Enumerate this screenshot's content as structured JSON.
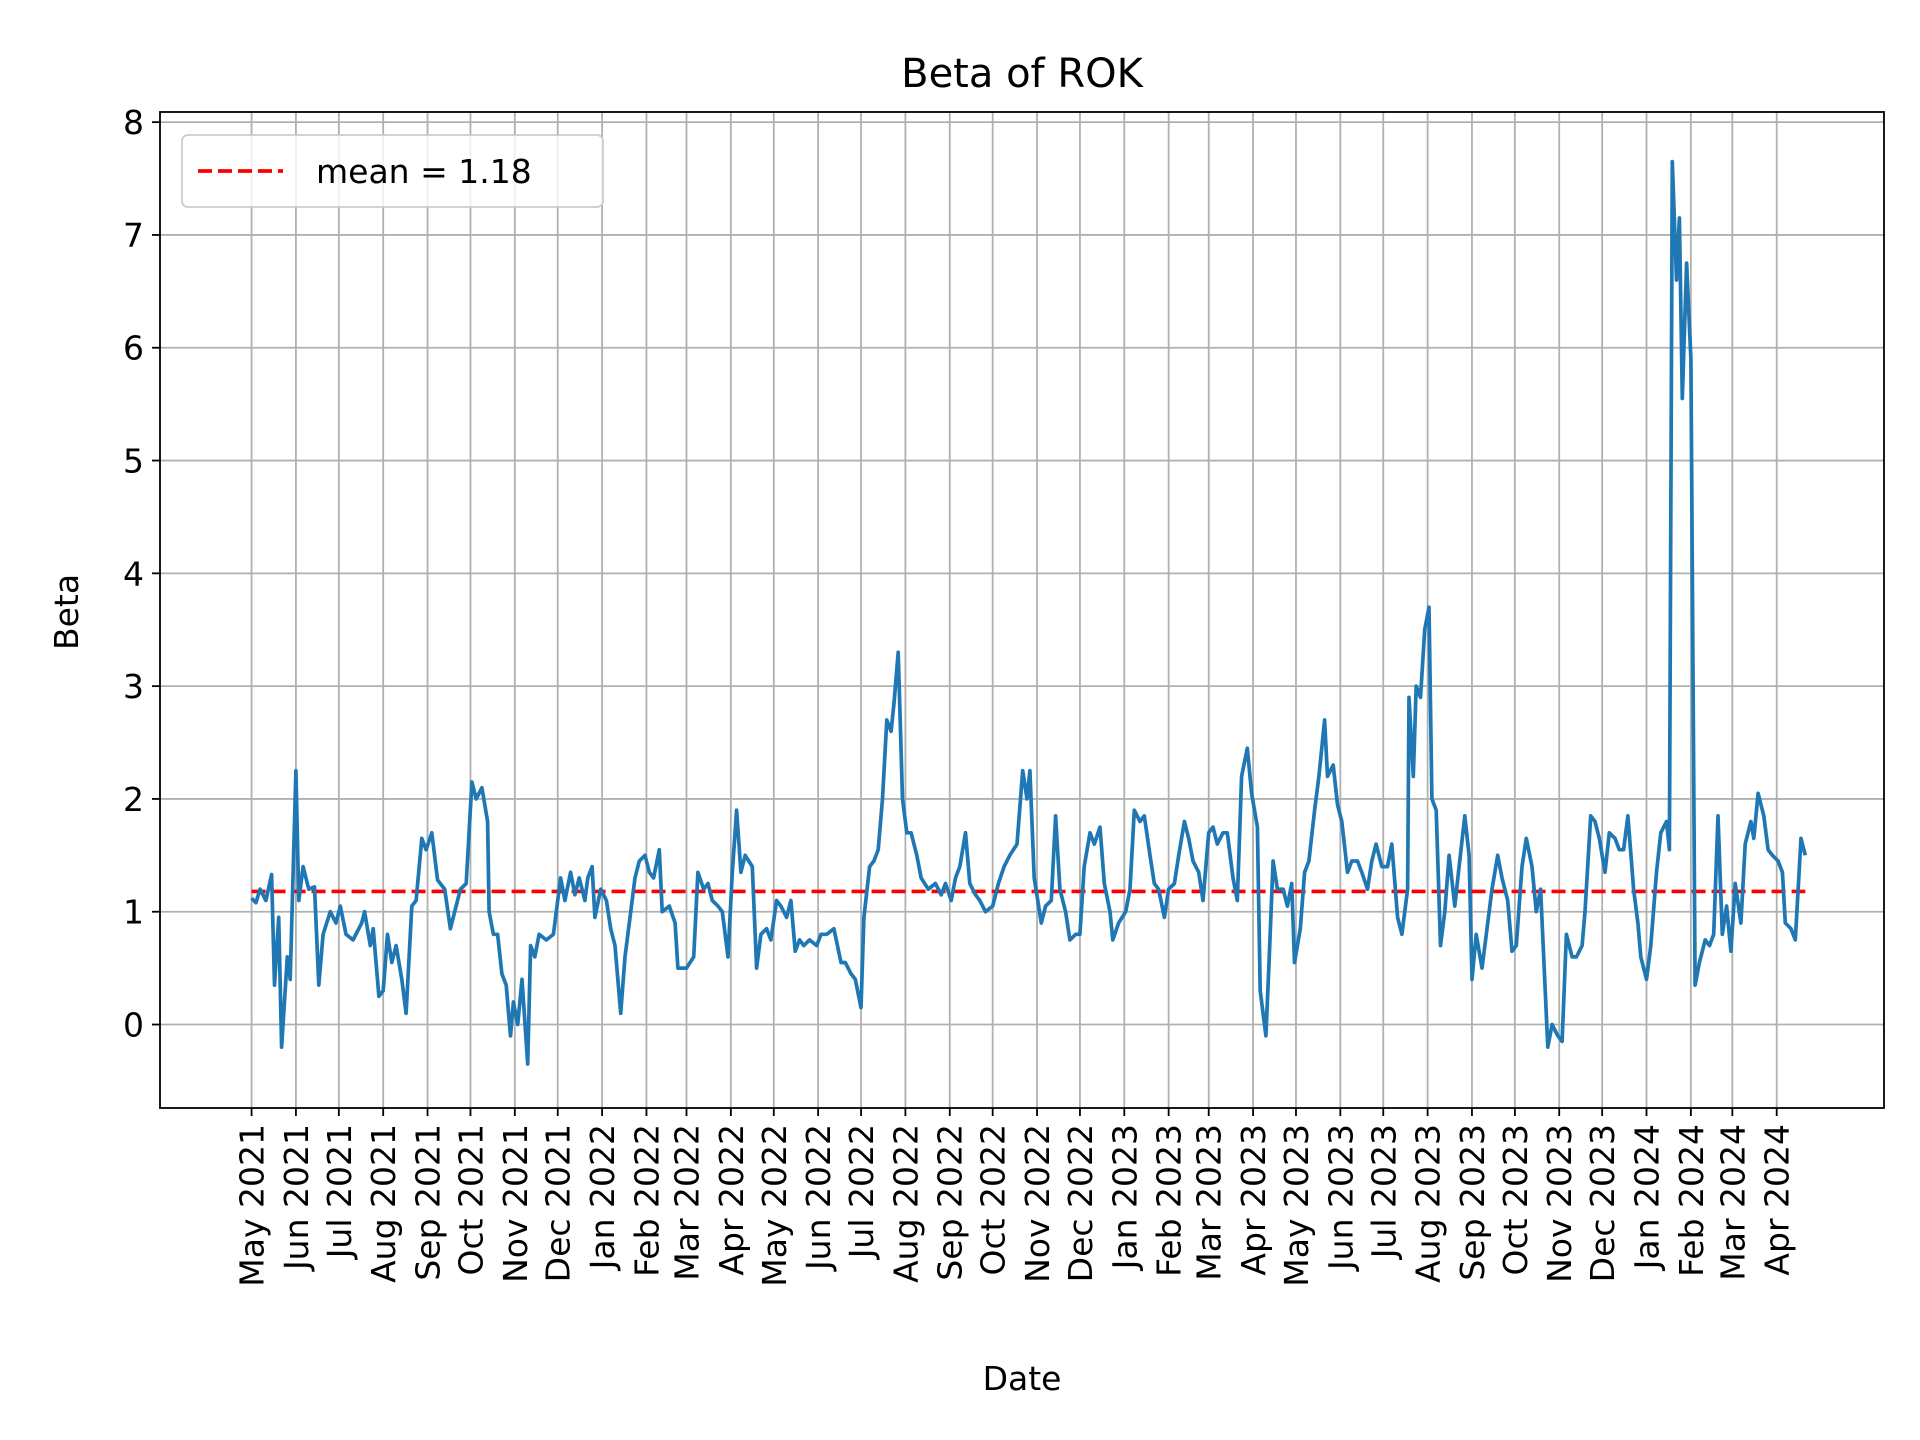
{
  "chart_data": {
    "type": "line",
    "title": "Beta of ROK",
    "xlabel": "Date",
    "ylabel": "Beta",
    "x_start_date": "2021-05-01",
    "x_unit": "days since 2021-05-01",
    "xlim": [
      "2021-02-26",
      "2024-06-15"
    ],
    "ylim": [
      -0.74,
      8.09
    ],
    "yticks": [
      0,
      1,
      2,
      3,
      4,
      5,
      6,
      7,
      8
    ],
    "grid": true,
    "legend_position": "top-left",
    "xticks": [
      {
        "date": "2021-05-01",
        "label": "May 2021"
      },
      {
        "date": "2021-06-01",
        "label": "Jun 2021"
      },
      {
        "date": "2021-07-01",
        "label": "Jul 2021"
      },
      {
        "date": "2021-08-01",
        "label": "Aug 2021"
      },
      {
        "date": "2021-09-01",
        "label": "Sep 2021"
      },
      {
        "date": "2021-10-01",
        "label": "Oct 2021"
      },
      {
        "date": "2021-11-01",
        "label": "Nov 2021"
      },
      {
        "date": "2021-12-01",
        "label": "Dec 2021"
      },
      {
        "date": "2022-01-01",
        "label": "Jan 2022"
      },
      {
        "date": "2022-02-01",
        "label": "Feb 2022"
      },
      {
        "date": "2022-03-01",
        "label": "Mar 2022"
      },
      {
        "date": "2022-04-01",
        "label": "Apr 2022"
      },
      {
        "date": "2022-05-01",
        "label": "May 2022"
      },
      {
        "date": "2022-06-01",
        "label": "Jun 2022"
      },
      {
        "date": "2022-07-01",
        "label": "Jul 2022"
      },
      {
        "date": "2022-08-01",
        "label": "Aug 2022"
      },
      {
        "date": "2022-09-01",
        "label": "Sep 2022"
      },
      {
        "date": "2022-10-01",
        "label": "Oct 2022"
      },
      {
        "date": "2022-11-01",
        "label": "Nov 2022"
      },
      {
        "date": "2022-12-01",
        "label": "Dec 2022"
      },
      {
        "date": "2023-01-01",
        "label": "Jan 2023"
      },
      {
        "date": "2023-02-01",
        "label": "Feb 2023"
      },
      {
        "date": "2023-03-01",
        "label": "Mar 2023"
      },
      {
        "date": "2023-04-01",
        "label": "Apr 2023"
      },
      {
        "date": "2023-05-01",
        "label": "May 2023"
      },
      {
        "date": "2023-06-01",
        "label": "Jun 2023"
      },
      {
        "date": "2023-07-01",
        "label": "Jul 2023"
      },
      {
        "date": "2023-08-01",
        "label": "Aug 2023"
      },
      {
        "date": "2023-09-01",
        "label": "Sep 2023"
      },
      {
        "date": "2023-10-01",
        "label": "Oct 2023"
      },
      {
        "date": "2023-11-01",
        "label": "Nov 2023"
      },
      {
        "date": "2023-12-01",
        "label": "Dec 2023"
      },
      {
        "date": "2024-01-01",
        "label": "Jan 2024"
      },
      {
        "date": "2024-02-01",
        "label": "Feb 2024"
      },
      {
        "date": "2024-03-01",
        "label": "Mar 2024"
      },
      {
        "date": "2024-04-01",
        "label": "Apr 2024"
      }
    ],
    "series": [
      {
        "name": "Beta",
        "color": "#1f77b4",
        "x_days": [
          0,
          3,
          6,
          10,
          14,
          16,
          19,
          21,
          25,
          27,
          31,
          33,
          36,
          40,
          44,
          47,
          50,
          55,
          59,
          62,
          66,
          71,
          77,
          79,
          83,
          85,
          89,
          92,
          95,
          98,
          101,
          105,
          108,
          112,
          115,
          119,
          122,
          126,
          130,
          135,
          139,
          142,
          146,
          150,
          154,
          157,
          161,
          165,
          166,
          169,
          172,
          175,
          178,
          181,
          183,
          186,
          189,
          193,
          195,
          198,
          201,
          206,
          211,
          216,
          219,
          223,
          226,
          229,
          233,
          235,
          238,
          240,
          244,
          248,
          251,
          254,
          258,
          261,
          264,
          268,
          271,
          275,
          278,
          281,
          285,
          287,
          292,
          296,
          298,
          304,
          309,
          312,
          316,
          319,
          322,
          326,
          329,
          333,
          336,
          339,
          342,
          345,
          350,
          353,
          356,
          360,
          363,
          367,
          370,
          374,
          377,
          380,
          383,
          386,
          390,
          395,
          398,
          402,
          407,
          412,
          415,
          419,
          422,
          426,
          428,
          432,
          435,
          438,
          441,
          444,
          447,
          449,
          452,
          455,
          458,
          461,
          465,
          468,
          473,
          478,
          482,
          485,
          489,
          492,
          495,
          499,
          502,
          506,
          509,
          513,
          518,
          522,
          526,
          530,
          535,
          539,
          542,
          544,
          547,
          552,
          555,
          559,
          562,
          565,
          569,
          572,
          576,
          579,
          582,
          586,
          589,
          593,
          596,
          600,
          602,
          606,
          611,
          614,
          617,
          621,
          624,
          628,
          631,
          634,
          638,
          641,
          645,
          648,
          652,
          655,
          658,
          662,
          665,
          669,
          672,
          675,
          679,
          682,
          686,
          689,
          692,
          696,
          699,
          703,
          705,
          709,
          711,
          714,
          717,
          721,
          724,
          727,
          729,
          733,
          736,
          739,
          743,
          746,
          750,
          752,
          756,
          759,
          762,
          766,
          769,
          773,
          776,
          780,
          783,
          786,
          790,
          794,
          797,
          801,
          804,
          808,
          809,
          812,
          814,
          817,
          820,
          823,
          825,
          828,
          831,
          834,
          837,
          841,
          844,
          848,
          851,
          853,
          856,
          860,
          863,
          867,
          871,
          874,
          878,
          881,
          884,
          888,
          891,
          895,
          898,
          901,
          906,
          909,
          913,
          916,
          919,
          923,
          926,
          930,
          932,
          936,
          939,
          942,
          946,
          949,
          953,
          956,
          959,
          962,
          966,
          969,
          971,
          975,
          978,
          982,
          985,
          989,
          991,
          993,
          996,
          998,
          1000,
          1003,
          1006,
          1009,
          1012,
          1016,
          1019,
          1022,
          1025,
          1028,
          1031,
          1034,
          1037,
          1041,
          1044,
          1048,
          1050,
          1053,
          1057,
          1060,
          1063,
          1067,
          1070,
          1072,
          1076,
          1079,
          1083,
          1086
        ],
        "y": [
          1.12,
          1.08,
          1.2,
          1.1,
          1.33,
          0.35,
          0.95,
          -0.2,
          0.6,
          0.4,
          2.25,
          1.1,
          1.4,
          1.2,
          1.22,
          0.35,
          0.8,
          1.0,
          0.9,
          1.05,
          0.8,
          0.75,
          0.9,
          1.0,
          0.7,
          0.85,
          0.25,
          0.3,
          0.8,
          0.55,
          0.7,
          0.4,
          0.1,
          1.05,
          1.1,
          1.65,
          1.55,
          1.7,
          1.28,
          1.2,
          0.85,
          1.0,
          1.2,
          1.25,
          2.15,
          2.0,
          2.1,
          1.8,
          1.0,
          0.8,
          0.8,
          0.45,
          0.35,
          -0.1,
          0.2,
          0.0,
          0.4,
          -0.35,
          0.7,
          0.6,
          0.8,
          0.75,
          0.8,
          1.3,
          1.1,
          1.35,
          1.15,
          1.3,
          1.1,
          1.3,
          1.4,
          0.95,
          1.2,
          1.1,
          0.85,
          0.7,
          0.1,
          0.6,
          0.9,
          1.3,
          1.45,
          1.5,
          1.35,
          1.3,
          1.55,
          1.0,
          1.05,
          0.9,
          0.5,
          0.5,
          0.6,
          1.35,
          1.2,
          1.25,
          1.1,
          1.05,
          1.0,
          0.6,
          1.35,
          1.9,
          1.35,
          1.5,
          1.4,
          0.5,
          0.8,
          0.85,
          0.75,
          1.1,
          1.05,
          0.95,
          1.1,
          0.65,
          0.75,
          0.7,
          0.75,
          0.7,
          0.8,
          0.8,
          0.85,
          0.55,
          0.55,
          0.45,
          0.4,
          0.15,
          0.95,
          1.4,
          1.45,
          1.55,
          2.0,
          2.7,
          2.6,
          2.85,
          3.3,
          2.0,
          1.7,
          1.7,
          1.5,
          1.3,
          1.2,
          1.25,
          1.15,
          1.25,
          1.1,
          1.3,
          1.4,
          1.7,
          1.25,
          1.15,
          1.1,
          1.0,
          1.05,
          1.25,
          1.4,
          1.5,
          1.6,
          2.25,
          2.0,
          2.25,
          1.3,
          0.9,
          1.05,
          1.1,
          1.85,
          1.2,
          1.0,
          0.75,
          0.8,
          0.8,
          1.4,
          1.7,
          1.6,
          1.75,
          1.25,
          1.0,
          0.75,
          0.9,
          1.0,
          1.2,
          1.9,
          1.8,
          1.85,
          1.5,
          1.25,
          1.2,
          0.95,
          1.2,
          1.25,
          1.5,
          1.8,
          1.65,
          1.45,
          1.35,
          1.1,
          1.7,
          1.75,
          1.6,
          1.7,
          1.7,
          1.3,
          1.1,
          2.2,
          2.45,
          2.05,
          1.75,
          0.3,
          -0.1,
          0.5,
          1.45,
          1.2,
          1.2,
          1.05,
          1.25,
          0.55,
          0.85,
          1.35,
          1.45,
          1.9,
          2.2,
          2.7,
          2.2,
          2.3,
          1.95,
          1.8,
          1.35,
          1.45,
          1.45,
          1.35,
          1.2,
          1.45,
          1.6,
          1.4,
          1.4,
          1.6,
          0.95,
          0.8,
          1.2,
          2.9,
          2.2,
          3.0,
          2.9,
          3.5,
          3.7,
          2.0,
          1.9,
          0.7,
          1.0,
          1.5,
          1.05,
          1.4,
          1.85,
          1.5,
          0.4,
          0.8,
          0.5,
          0.8,
          1.2,
          1.5,
          1.3,
          1.1,
          0.65,
          0.7,
          1.4,
          1.65,
          1.4,
          1.0,
          1.2,
          -0.2,
          0.0,
          -0.1,
          -0.15,
          0.8,
          0.6,
          0.6,
          0.7,
          1.0,
          1.85,
          1.8,
          1.65,
          1.35,
          1.7,
          1.65,
          1.55,
          1.55,
          1.85,
          1.2,
          0.9,
          0.6,
          0.4,
          0.7,
          1.35,
          1.7,
          1.8,
          1.55,
          7.65,
          6.6,
          7.15,
          5.55,
          6.75,
          5.9,
          0.35,
          0.55,
          0.75,
          0.7,
          0.8,
          1.85,
          0.8,
          1.05,
          0.65,
          1.25,
          0.9,
          1.6,
          1.8,
          1.65,
          2.05,
          1.85,
          1.55,
          1.5,
          1.45,
          1.35,
          0.9,
          0.85,
          0.75,
          1.65,
          1.5
        ]
      },
      {
        "name": "mean = 1.18",
        "color": "#ff0000",
        "style": "dashed",
        "value": 1.18
      }
    ]
  }
}
